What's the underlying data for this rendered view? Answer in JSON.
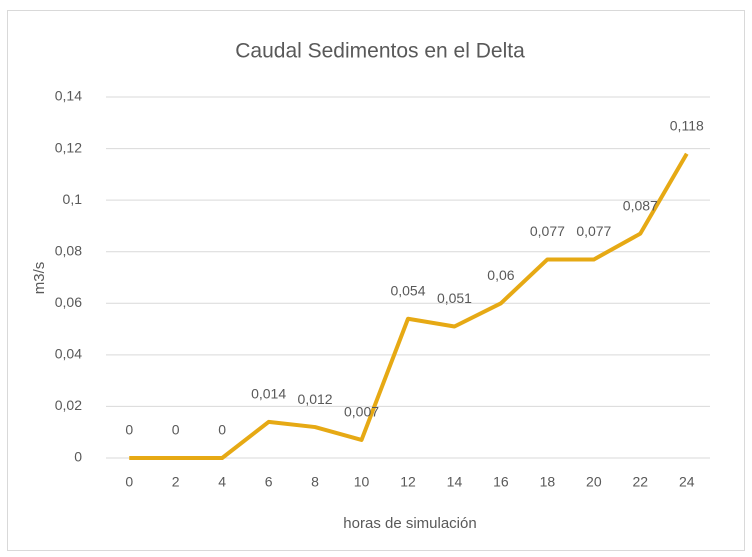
{
  "chart_data": {
    "type": "line",
    "title": "Caudal Sedimentos en el Delta",
    "x_label": "horas de simulación",
    "y_label": "m3/s",
    "categories": [
      "0",
      "2",
      "4",
      "6",
      "8",
      "10",
      "12",
      "14",
      "16",
      "18",
      "20",
      "22",
      "24"
    ],
    "values": [
      0,
      0,
      0,
      0.014,
      0.012,
      0.007,
      0.054,
      0.051,
      0.06,
      0.077,
      0.077,
      0.087,
      0.118
    ],
    "value_labels": [
      "0",
      "0",
      "0",
      "0,014",
      "0,012",
      "0,007",
      "0,054",
      "0,051",
      "0,06",
      "0,077",
      "0,077",
      "0,087",
      "0,118"
    ],
    "color": "#e6a914",
    "ylim": [
      0,
      0.14
    ],
    "yticks": [
      0,
      {
        "value": 0.02,
        "label": "0,02"
      },
      {
        "value": 0.04,
        "label": "0,04"
      },
      {
        "value": 0.06,
        "label": "0,06"
      },
      {
        "value": 0.08,
        "label": "0,08"
      },
      {
        "value": 0.1,
        "label": "0,1"
      },
      {
        "value": 0.12,
        "label": "0,12"
      },
      {
        "value": 0.14,
        "label": "0,14"
      }
    ],
    "grid": true
  }
}
